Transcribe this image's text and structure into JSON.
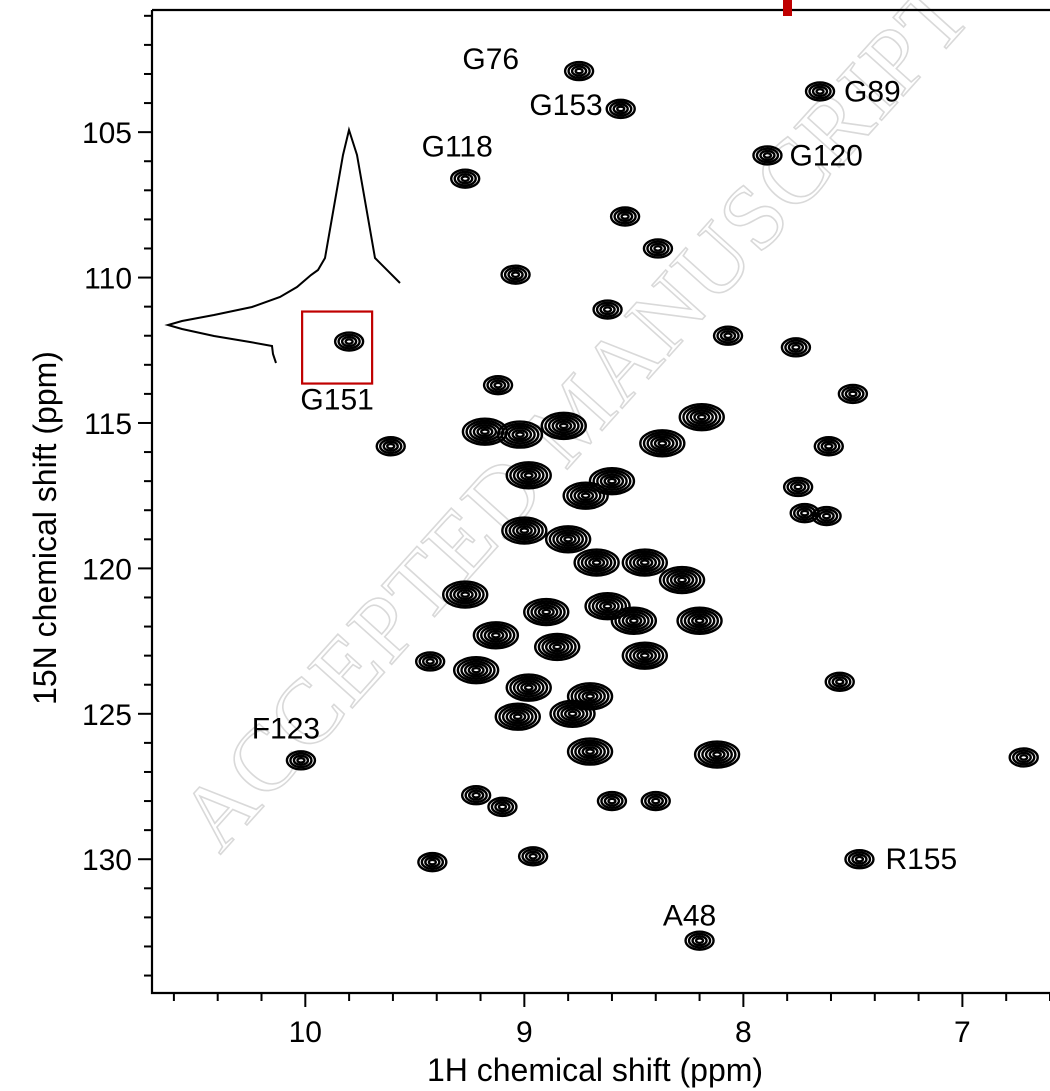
{
  "chart_data": {
    "type": "scatter",
    "plot_style": "2D HSQC contour spectrum",
    "xlabel": "1H chemical shift (ppm)",
    "ylabel": "15N chemical shift (ppm)",
    "xlim": [
      10.7,
      6.6
    ],
    "ylim": [
      100.8,
      134.6
    ],
    "x_reversed": true,
    "y_reversed": true,
    "x_major_ticks": [
      10,
      9,
      8,
      7
    ],
    "y_major_ticks": [
      105,
      110,
      115,
      120,
      125,
      130
    ],
    "x_tick_labels": [
      "10",
      "9",
      "8",
      "7"
    ],
    "y_tick_labels": [
      "105",
      "110",
      "115",
      "120",
      "125",
      "130"
    ],
    "grid": false,
    "watermark": "ACCEPTED MANUSCRIPT",
    "labeled_peaks": [
      {
        "label": "G76",
        "x": 8.75,
        "y": 102.9
      },
      {
        "label": "G89",
        "x": 7.65,
        "y": 103.6
      },
      {
        "label": "G153",
        "x": 8.56,
        "y": 104.2
      },
      {
        "label": "G118",
        "x": 9.27,
        "y": 106.6
      },
      {
        "label": "G120",
        "x": 7.89,
        "y": 105.8
      },
      {
        "label": "G151",
        "x": 9.8,
        "y": 112.2
      },
      {
        "label": "F123",
        "x": 10.02,
        "y": 126.6
      },
      {
        "label": "R155",
        "x": 7.47,
        "y": 130.0
      },
      {
        "label": "A48",
        "x": 8.2,
        "y": 132.8
      }
    ],
    "unlabeled_peaks": [
      {
        "x": 8.54,
        "y": 107.9
      },
      {
        "x": 8.39,
        "y": 109.0
      },
      {
        "x": 9.04,
        "y": 109.9
      },
      {
        "x": 8.62,
        "y": 111.1
      },
      {
        "x": 8.07,
        "y": 112.0
      },
      {
        "x": 7.76,
        "y": 112.4
      },
      {
        "x": 9.12,
        "y": 113.7
      },
      {
        "x": 7.5,
        "y": 114.0
      },
      {
        "x": 9.61,
        "y": 115.8
      },
      {
        "x": 9.02,
        "y": 115.4
      },
      {
        "x": 9.18,
        "y": 115.3
      },
      {
        "x": 8.82,
        "y": 115.1
      },
      {
        "x": 8.37,
        "y": 115.7
      },
      {
        "x": 8.19,
        "y": 114.8
      },
      {
        "x": 7.61,
        "y": 115.8
      },
      {
        "x": 8.98,
        "y": 116.8
      },
      {
        "x": 8.72,
        "y": 117.5
      },
      {
        "x": 8.6,
        "y": 117.0
      },
      {
        "x": 7.75,
        "y": 117.2
      },
      {
        "x": 7.62,
        "y": 118.2
      },
      {
        "x": 7.72,
        "y": 118.1
      },
      {
        "x": 9.0,
        "y": 118.7
      },
      {
        "x": 8.8,
        "y": 119.0
      },
      {
        "x": 8.67,
        "y": 119.8
      },
      {
        "x": 8.45,
        "y": 119.8
      },
      {
        "x": 8.28,
        "y": 120.4
      },
      {
        "x": 9.27,
        "y": 120.9
      },
      {
        "x": 8.9,
        "y": 121.5
      },
      {
        "x": 8.62,
        "y": 121.3
      },
      {
        "x": 8.5,
        "y": 121.8
      },
      {
        "x": 8.2,
        "y": 121.8
      },
      {
        "x": 9.13,
        "y": 122.3
      },
      {
        "x": 8.85,
        "y": 122.7
      },
      {
        "x": 8.45,
        "y": 123.0
      },
      {
        "x": 9.43,
        "y": 123.2
      },
      {
        "x": 9.22,
        "y": 123.5
      },
      {
        "x": 8.98,
        "y": 124.1
      },
      {
        "x": 8.7,
        "y": 124.4
      },
      {
        "x": 9.03,
        "y": 125.1
      },
      {
        "x": 8.78,
        "y": 125.0
      },
      {
        "x": 7.56,
        "y": 123.9
      },
      {
        "x": 8.7,
        "y": 126.3
      },
      {
        "x": 8.12,
        "y": 126.4
      },
      {
        "x": 6.72,
        "y": 126.5
      },
      {
        "x": 9.22,
        "y": 127.8
      },
      {
        "x": 9.1,
        "y": 128.2
      },
      {
        "x": 8.6,
        "y": 128.0
      },
      {
        "x": 8.4,
        "y": 128.0
      },
      {
        "x": 9.42,
        "y": 130.1
      },
      {
        "x": 8.96,
        "y": 129.9
      }
    ]
  }
}
